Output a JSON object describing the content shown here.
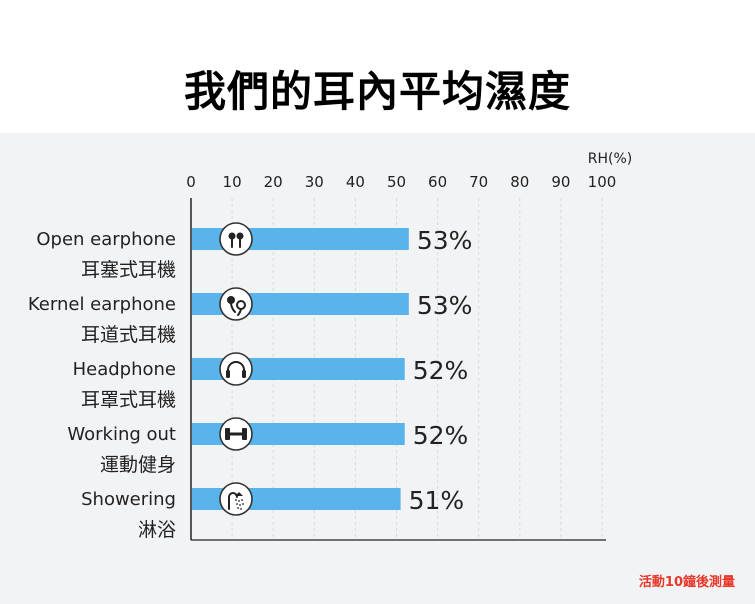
{
  "title": "我們的耳內平均濕度",
  "footnote": "活動10鐘後測量",
  "colors": {
    "bar": "#5ab4ec",
    "panel": "#f2f3f5",
    "footnote": "#e8392a"
  },
  "chart_data": {
    "type": "bar",
    "orientation": "horizontal",
    "unit_label": "RH(%)",
    "xlim": [
      0,
      100
    ],
    "ticks": [
      0,
      10,
      20,
      30,
      40,
      50,
      60,
      70,
      80,
      90,
      100
    ],
    "categories": [
      {
        "en": "Open earphone",
        "zh": "耳塞式耳機",
        "icon": "earbuds-icon"
      },
      {
        "en": "Kernel earphone",
        "zh": "耳道式耳機",
        "icon": "in-ear-earphones-icon"
      },
      {
        "en": "Headphone",
        "zh": "耳罩式耳機",
        "icon": "headphones-icon"
      },
      {
        "en": "Working out",
        "zh": "運動健身",
        "icon": "dumbbell-icon"
      },
      {
        "en": "Showering",
        "zh": "淋浴",
        "icon": "shower-icon"
      }
    ],
    "values": [
      53,
      53,
      52,
      52,
      51
    ],
    "value_labels": [
      "53%",
      "53%",
      "52%",
      "52%",
      "51%"
    ],
    "grid": true
  }
}
